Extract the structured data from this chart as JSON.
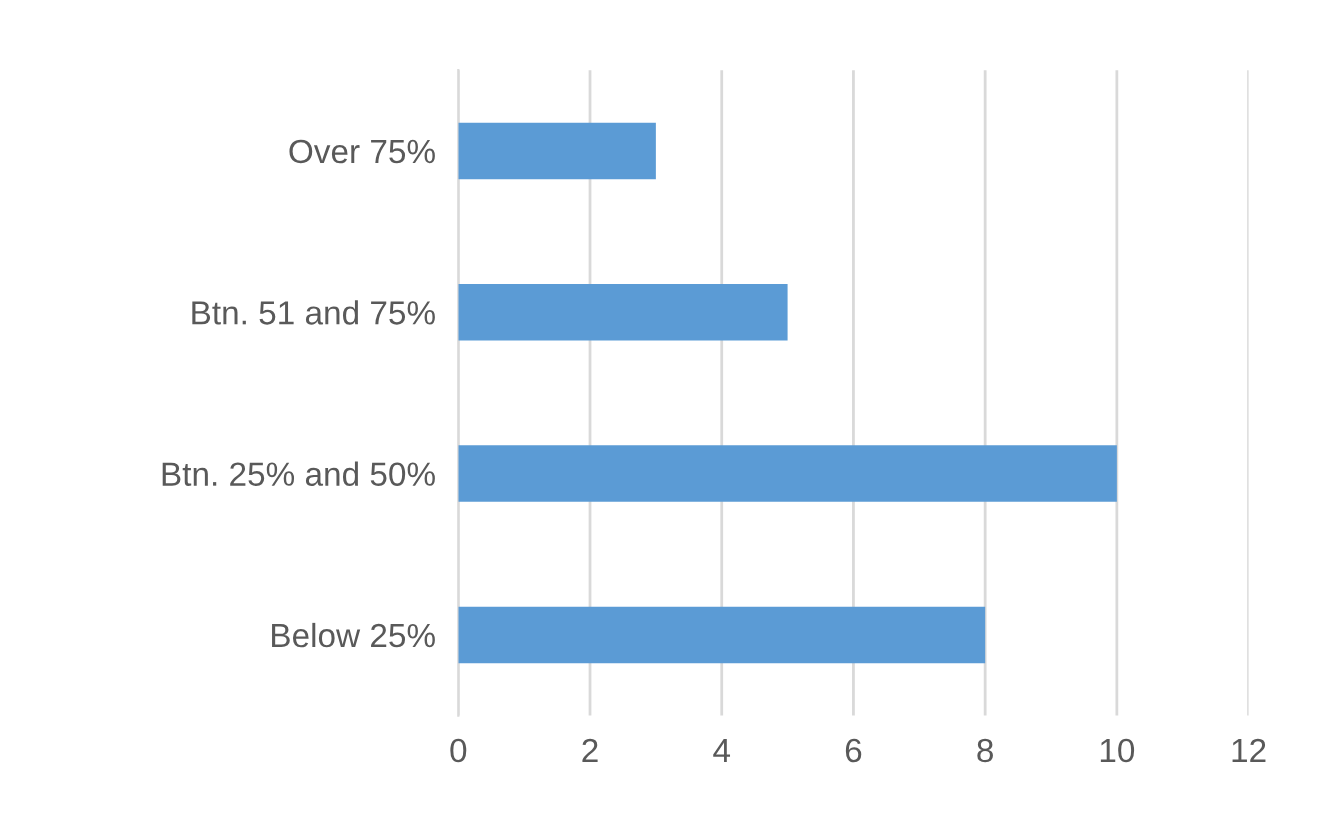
{
  "chart_data": {
    "type": "bar",
    "orientation": "horizontal",
    "categories": [
      "Over 75%",
      "Btn. 51 and 75%",
      "Btn. 25% and 50%",
      "Below 25%"
    ],
    "values": [
      3,
      5,
      10,
      8
    ],
    "color": "#5b9bd5",
    "xlim": [
      0,
      12
    ],
    "xticks": [
      0,
      2,
      4,
      6,
      8,
      10,
      12
    ],
    "grid": "x",
    "legend": false
  }
}
